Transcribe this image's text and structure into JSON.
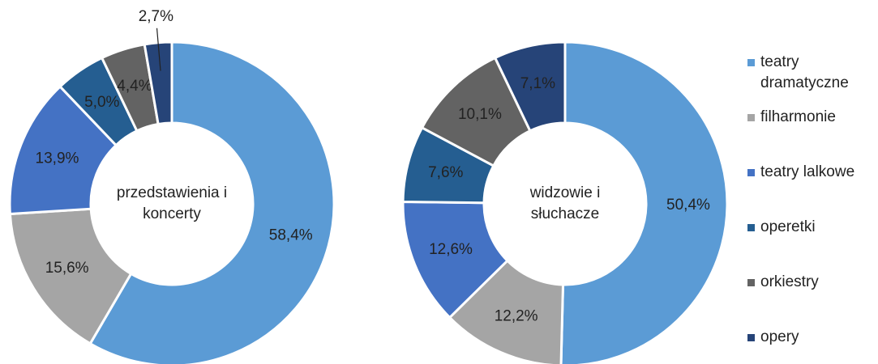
{
  "chart_data": [
    {
      "type": "pie",
      "center_label": "przedstawienia i koncerty",
      "categories": [
        "teatry dramatyczne",
        "filharmonie",
        "teatry lalkowe",
        "operetki",
        "orkiestry",
        "opery"
      ],
      "values": [
        58.4,
        15.6,
        13.9,
        5.0,
        4.4,
        2.7
      ],
      "value_labels": [
        "58,4%",
        "15,6%",
        "13,9%",
        "5,0%",
        "4,4%",
        "2,7%"
      ],
      "colors": [
        "#5b9bd5",
        "#a5a5a5",
        "#4472c4",
        "#255e91",
        "#636363",
        "#264478"
      ]
    },
    {
      "type": "pie",
      "center_label": "widzowie i słuchacze",
      "categories": [
        "teatry dramatyczne",
        "filharmonie",
        "teatry lalkowe",
        "operetki",
        "orkiestry",
        "opery"
      ],
      "values": [
        50.4,
        12.2,
        12.6,
        7.6,
        10.1,
        7.1
      ],
      "value_labels": [
        "50,4%",
        "12,2%",
        "12,6%",
        "7,6%",
        "10,1%",
        "7,1%"
      ],
      "colors": [
        "#5b9bd5",
        "#a5a5a5",
        "#4472c4",
        "#255e91",
        "#636363",
        "#264478"
      ]
    }
  ]
}
